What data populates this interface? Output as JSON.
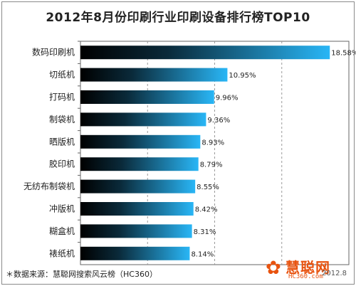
{
  "chart_data": {
    "type": "bar",
    "orientation": "horizontal",
    "title": "2012年8月份印刷行业印刷设备排行榜TOP10",
    "categories": [
      "数码印刷机",
      "切纸机",
      "打码机",
      "制袋机",
      "晒版机",
      "胶印机",
      "无纺布制袋机",
      "冲版机",
      "糊盒机",
      "裱纸机"
    ],
    "values": [
      18.58,
      10.95,
      9.96,
      9.36,
      8.93,
      8.79,
      8.55,
      8.42,
      8.31,
      8.14
    ],
    "value_labels": [
      "18.58%",
      "10.95%",
      "9.96%",
      "9.36%",
      "8.93%",
      "8.79%",
      "8.55%",
      "8.42%",
      "8.31%",
      "8.14%"
    ],
    "xlim": [
      0,
      20
    ],
    "grid": true,
    "bar_colors": {
      "dark": "#000000",
      "light": "#29b6f6"
    }
  },
  "footer": "＊数据来源：慧聪网搜索风云榜（HC360）",
  "date": "2012.8",
  "logo": {
    "brand": "慧聪网",
    "url": "HC360.com"
  }
}
